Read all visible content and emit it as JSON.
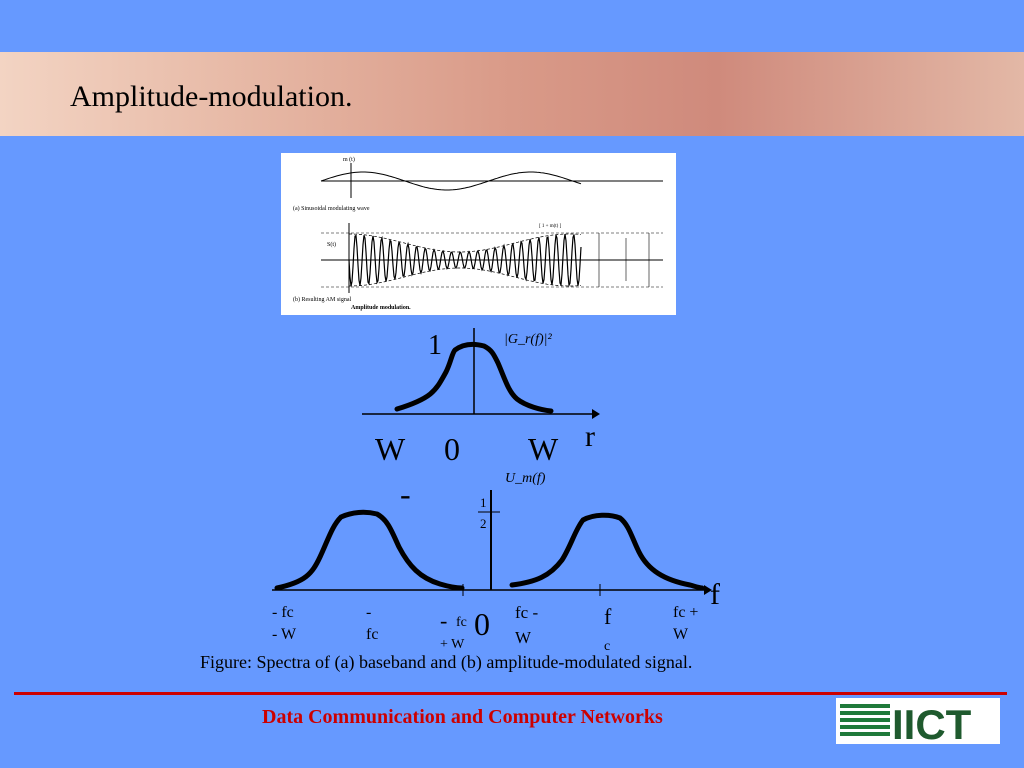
{
  "slide": {
    "title": "Amplitude-modulation.",
    "caption": "Figure: Spectra of (a) baseband and (b) amplitude-modulated signal.",
    "footer": "Data Communication and Computer Networks",
    "logo_text": "IICT",
    "accent_color": "#cc0000",
    "background_color": "#6699ff"
  },
  "am_figure": {
    "top_axis_label": "m (t)",
    "top_caption": "(a) Sinusoidal modulating wave",
    "bottom_axis_label": "S(t)",
    "bottom_caption": "(b) Resulting AM signal",
    "figure_title": "Amplitude modulation.",
    "envelope_label": "[ 1 + m(t) ]"
  },
  "baseband_spectrum": {
    "y_label": "|G_r(f)|²",
    "y_tick": "1",
    "x_axis_letter": "r",
    "tick_left": "W",
    "tick_center": "0",
    "tick_right": "W",
    "minus_sign": "-"
  },
  "am_spectrum": {
    "y_label": "U_m(f)",
    "y_tick_num": "1",
    "y_tick_den": "2",
    "x_axis_letter": "f",
    "labels": {
      "neg_fc_minus_w": [
        "- fc",
        "- W"
      ],
      "neg_fc": [
        "-",
        "fc"
      ],
      "neg_fc_plus_w_sign": "-",
      "neg_fc_plus_w": [
        "fc",
        "+ W"
      ],
      "zero": "0",
      "fc_minus_w": [
        "fc -",
        "W"
      ],
      "fc": [
        "f",
        "c"
      ],
      "fc_plus_w": [
        "fc +",
        "W"
      ]
    }
  }
}
